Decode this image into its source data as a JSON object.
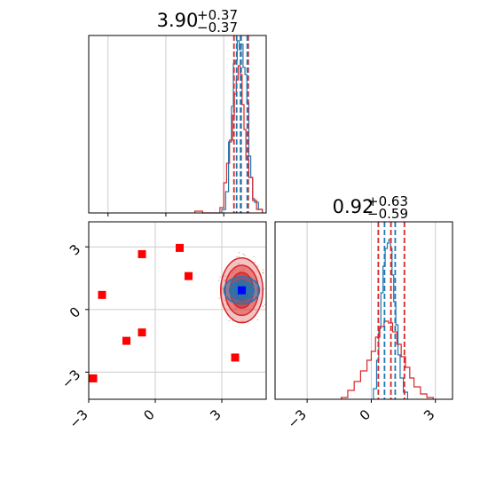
{
  "colors": {
    "series_red": "#d62728",
    "series_blue": "#1f77b4",
    "marker_red": "#ff0000",
    "marker_blue": "#0000ff",
    "grid": "#cccccc",
    "axis": "#000000"
  },
  "chart_data": [
    {
      "type": "histogram",
      "panel": "top-left",
      "title": {
        "value": "3.90",
        "plus": "+0.37",
        "minus": "−0.37"
      },
      "xlim": [
        -4.0,
        5.2
      ],
      "grid": true,
      "quantile_lines": {
        "series_red": [
          3.53,
          3.9,
          4.27
        ],
        "series_blue": [
          3.67,
          3.87,
          4.22
        ]
      },
      "series": [
        {
          "color": "series_blue",
          "bin_edges": [
            2.9,
            3.1,
            3.25,
            3.4,
            3.5,
            3.6,
            3.7,
            3.8,
            3.9,
            4.0,
            4.1,
            4.2,
            4.3,
            4.4,
            4.5,
            4.6,
            4.8,
            5.0
          ],
          "heights": [
            0.02,
            0.12,
            0.4,
            0.6,
            0.84,
            0.86,
            0.97,
            0.92,
            0.95,
            0.82,
            0.78,
            0.62,
            0.32,
            0.2,
            0.08,
            0.06,
            0.02
          ]
        },
        {
          "color": "series_red",
          "bin_edges": [
            1.5,
            1.9,
            2.8,
            3.0,
            3.15,
            3.3,
            3.45,
            3.55,
            3.65,
            3.75,
            3.85,
            3.95,
            4.05,
            4.15,
            4.3,
            4.5,
            4.7,
            5.0
          ],
          "heights": [
            0.01,
            0.0,
            0.03,
            0.17,
            0.28,
            0.41,
            0.55,
            0.67,
            0.75,
            0.83,
            0.78,
            0.61,
            0.47,
            0.3,
            0.2,
            0.07,
            0.02
          ]
        }
      ]
    },
    {
      "type": "histogram",
      "panel": "bottom-right",
      "title": {
        "value": "0.92",
        "plus": "+0.63",
        "minus": "−0.59"
      },
      "xlim": [
        -4.5,
        3.8
      ],
      "xticks": [
        "−3",
        "0",
        "3"
      ],
      "xtick_values": [
        -3,
        0,
        3
      ],
      "grid": true,
      "quantile_lines": {
        "series_red": [
          0.33,
          0.92,
          1.55
        ],
        "series_blue": [
          0.62,
          1.12
        ]
      },
      "series": [
        {
          "color": "series_blue",
          "bin_edges": [
            0.1,
            0.25,
            0.35,
            0.45,
            0.55,
            0.65,
            0.75,
            0.82,
            0.9,
            0.97,
            1.05,
            1.15,
            1.25,
            1.35,
            1.5,
            1.7
          ],
          "heights": [
            0.06,
            0.22,
            0.4,
            0.6,
            0.75,
            0.85,
            0.88,
            0.9,
            0.85,
            0.7,
            0.55,
            0.42,
            0.25,
            0.12,
            0.04
          ]
        },
        {
          "color": "series_red",
          "bin_edges": [
            -1.4,
            -1.1,
            -0.8,
            -0.5,
            -0.2,
            0.0,
            0.2,
            0.4,
            0.6,
            0.8,
            1.0,
            1.2,
            1.4,
            1.6,
            1.8,
            2.0,
            2.3,
            2.6,
            2.9
          ],
          "heights": [
            0.01,
            0.05,
            0.1,
            0.16,
            0.22,
            0.27,
            0.35,
            0.41,
            0.44,
            0.43,
            0.38,
            0.31,
            0.24,
            0.18,
            0.12,
            0.07,
            0.03,
            0.01
          ]
        }
      ]
    },
    {
      "type": "scatter",
      "panel": "bottom-left",
      "xlim": [
        -3.0,
        5.0
      ],
      "ylim": [
        -4.3,
        4.2
      ],
      "xticks": [
        "−3",
        "0",
        "3"
      ],
      "xtick_values": [
        -3,
        0,
        3
      ],
      "yticks": [
        "3",
        "0",
        "−3"
      ],
      "ytick_values": [
        3,
        0,
        -3
      ],
      "grid": true,
      "markers_red": [
        {
          "x": -2.8,
          "y": -3.3
        },
        {
          "x": -2.4,
          "y": 0.7
        },
        {
          "x": -1.3,
          "y": -1.5
        },
        {
          "x": -0.6,
          "y": -1.1
        },
        {
          "x": -0.6,
          "y": 2.65
        },
        {
          "x": 1.1,
          "y": 2.95
        },
        {
          "x": 1.5,
          "y": 1.6
        },
        {
          "x": 3.6,
          "y": -2.3
        }
      ],
      "marker_blue": {
        "x": 3.9,
        "y": 0.92
      },
      "contours_red": [
        {
          "cx": 3.9,
          "cy": 0.92,
          "rx": 0.95,
          "ry": 1.55
        },
        {
          "cx": 3.9,
          "cy": 0.92,
          "rx": 0.75,
          "ry": 1.2
        },
        {
          "cx": 3.9,
          "cy": 0.92,
          "rx": 0.52,
          "ry": 0.85
        },
        {
          "cx": 3.9,
          "cy": 0.92,
          "rx": 0.3,
          "ry": 0.5
        }
      ],
      "contours_blue": [
        {
          "cx": 3.9,
          "cy": 0.92,
          "rx": 0.8,
          "ry": 0.65
        },
        {
          "cx": 3.9,
          "cy": 0.92,
          "rx": 0.55,
          "ry": 0.45
        },
        {
          "cx": 3.9,
          "cy": 0.92,
          "rx": 0.33,
          "ry": 0.27
        }
      ]
    }
  ]
}
